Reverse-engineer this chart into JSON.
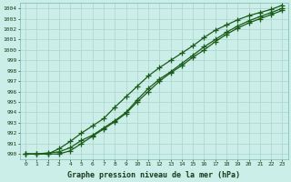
{
  "title": "Graphe pression niveau de la mer (hPa)",
  "bg_color": "#cceee8",
  "grid_color": "#aad4cc",
  "line_color": "#1a5c1a",
  "xlim": [
    -0.5,
    23.5
  ],
  "ylim": [
    989.5,
    1004.5
  ],
  "xticks": [
    0,
    1,
    2,
    3,
    4,
    5,
    6,
    7,
    8,
    9,
    10,
    11,
    12,
    13,
    14,
    15,
    16,
    17,
    18,
    19,
    20,
    21,
    22,
    23
  ],
  "yticks": [
    990,
    991,
    992,
    993,
    994,
    995,
    996,
    997,
    998,
    999,
    1000,
    1001,
    1002,
    1003,
    1004
  ],
  "series1": [
    990.0,
    990.0,
    990.1,
    990.2,
    990.6,
    991.3,
    991.8,
    992.5,
    993.2,
    994.0,
    995.2,
    996.3,
    997.2,
    997.9,
    998.7,
    999.5,
    1000.3,
    1001.0,
    1001.7,
    1002.3,
    1002.8,
    1003.2,
    1003.6,
    1004.0
  ],
  "series2": [
    990.0,
    990.0,
    990.0,
    990.0,
    990.3,
    991.0,
    991.7,
    992.4,
    993.1,
    993.9,
    995.0,
    996.0,
    997.0,
    997.8,
    998.5,
    999.3,
    1000.0,
    1000.8,
    1001.5,
    1002.1,
    1002.6,
    1003.0,
    1003.4,
    1003.8
  ],
  "series3": [
    990.0,
    990.0,
    990.0,
    990.5,
    991.2,
    992.0,
    992.7,
    993.4,
    994.5,
    995.5,
    996.5,
    997.5,
    998.3,
    999.0,
    999.7,
    1000.4,
    1001.2,
    1001.9,
    1002.4,
    1002.9,
    1003.3,
    1003.6,
    1003.9,
    1004.3
  ]
}
